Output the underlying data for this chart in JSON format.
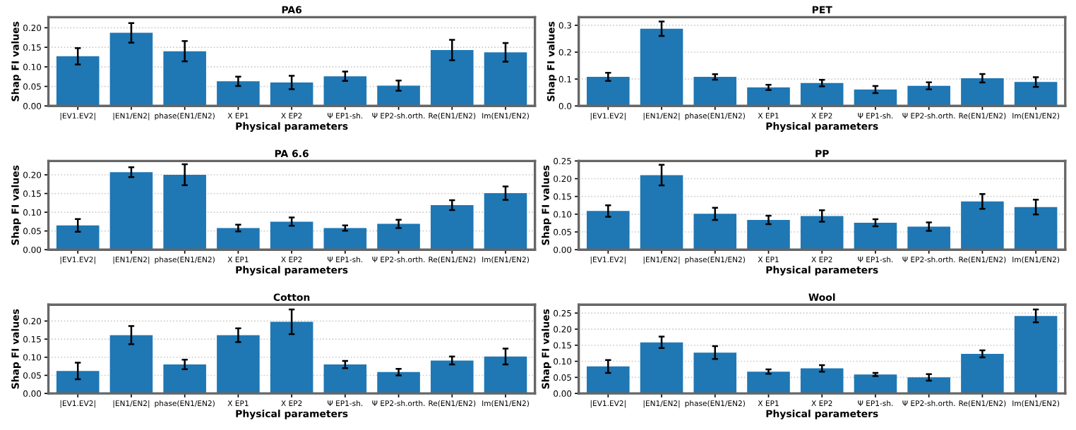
{
  "chart_data": [
    {
      "type": "bar",
      "title": "PA6",
      "xlabel": "Physical parameters",
      "ylabel": "Shap FI values",
      "categories": [
        "|EV1.EV2|",
        "|EN1/EN2|",
        "phase(EN1/EN2)",
        "X EP1",
        "X EP2",
        "Ψ EP1-sh.",
        "Ψ EP2-sh.orth.",
        "Re(EN1/EN2)",
        "Im(EN1/EN2)"
      ],
      "color": "#1f77b4",
      "values": [
        0.127,
        0.187,
        0.14,
        0.063,
        0.06,
        0.076,
        0.052,
        0.143,
        0.137
      ],
      "errors": [
        0.021,
        0.025,
        0.026,
        0.012,
        0.017,
        0.012,
        0.013,
        0.026,
        0.024
      ],
      "ylim": [
        0,
        0.227
      ],
      "yticks": [
        {
          "value": 0,
          "label": "0.00"
        },
        0.05,
        {
          "value": 0.1,
          "label": "0.10"
        },
        0.15,
        {
          "value": 0.2,
          "label": "0.20"
        }
      ],
      "grid": "y"
    },
    {
      "type": "bar",
      "title": "PET",
      "xlabel": "Physical parameters",
      "ylabel": "Shap FI values",
      "categories": [
        "|EV1.EV2|",
        "|EN1/EN2|",
        "phase(EN1/EN2)",
        "X EP1",
        "X EP2",
        "Ψ EP1-sh.",
        "Ψ EP2-sh.orth.",
        "Re(EN1/EN2)",
        "Im(EN1/EN2)"
      ],
      "color": "#1f77b4",
      "values": [
        0.108,
        0.287,
        0.108,
        0.069,
        0.085,
        0.061,
        0.075,
        0.103,
        0.089
      ],
      "errors": [
        0.015,
        0.027,
        0.01,
        0.01,
        0.012,
        0.013,
        0.013,
        0.016,
        0.018
      ],
      "ylim": [
        0,
        0.33
      ],
      "yticks": [
        {
          "value": 0,
          "label": "0.0"
        },
        0.1,
        0.2,
        0.3
      ],
      "grid": "y"
    },
    {
      "type": "bar",
      "title": "PA 6.6",
      "xlabel": "Physical parameters",
      "ylabel": "Shap FI values",
      "categories": [
        "|EV1.EV2|",
        "|EN1/EN2|",
        "phase(EN1/EN2)",
        "X EP1",
        "X EP2",
        "Ψ EP1-sh.",
        "Ψ EP2-sh.orth.",
        "Re(EN1/EN2)",
        "Im(EN1/EN2)"
      ],
      "color": "#1f77b4",
      "values": [
        0.065,
        0.207,
        0.2,
        0.058,
        0.075,
        0.058,
        0.069,
        0.119,
        0.151
      ],
      "errors": [
        0.017,
        0.013,
        0.028,
        0.009,
        0.011,
        0.007,
        0.011,
        0.013,
        0.018
      ],
      "ylim": [
        0,
        0.237
      ],
      "yticks": [
        {
          "value": 0,
          "label": "0.00"
        },
        0.05,
        {
          "value": 0.1,
          "label": "0.10"
        },
        0.15,
        {
          "value": 0.2,
          "label": "0.20"
        }
      ],
      "grid": "y"
    },
    {
      "type": "bar",
      "title": "PP",
      "xlabel": "Physical parameters",
      "ylabel": "Shap FI values",
      "categories": [
        "|EV1.EV2|",
        "|EN1/EN2|",
        "phase(EN1/EN2)",
        "X EP1",
        "X EP2",
        "Ψ EP1-sh.",
        "Ψ EP2-sh.orth.",
        "Re(EN1/EN2)",
        "Im(EN1/EN2)"
      ],
      "color": "#1f77b4",
      "values": [
        0.109,
        0.21,
        0.101,
        0.084,
        0.095,
        0.076,
        0.065,
        0.136,
        0.12
      ],
      "errors": [
        0.016,
        0.029,
        0.017,
        0.012,
        0.016,
        0.01,
        0.012,
        0.021,
        0.021
      ],
      "ylim": [
        0,
        0.25
      ],
      "yticks": [
        {
          "value": 0,
          "label": "0.00"
        },
        0.05,
        {
          "value": 0.1,
          "label": "0.10"
        },
        0.15,
        {
          "value": 0.2,
          "label": "0.20"
        },
        0.25
      ],
      "grid": "y"
    },
    {
      "type": "bar",
      "title": "Cotton",
      "xlabel": "Physical parameters",
      "ylabel": "Shap FI values",
      "categories": [
        "|EV1.EV2|",
        "|EN1/EN2|",
        "phase(EN1/EN2)",
        "X EP1",
        "X EP2",
        "Ψ EP1-sh.",
        "Ψ EP2-sh.orth.",
        "Re(EN1/EN2)",
        "Im(EN1/EN2)"
      ],
      "color": "#1f77b4",
      "values": [
        0.062,
        0.161,
        0.08,
        0.161,
        0.198,
        0.08,
        0.059,
        0.091,
        0.102
      ],
      "errors": [
        0.023,
        0.025,
        0.013,
        0.019,
        0.034,
        0.01,
        0.009,
        0.011,
        0.022
      ],
      "ylim": [
        0,
        0.245
      ],
      "yticks": [
        {
          "value": 0,
          "label": "0.00"
        },
        0.05,
        {
          "value": 0.1,
          "label": "0.10"
        },
        0.15,
        {
          "value": 0.2,
          "label": "0.20"
        }
      ],
      "grid": "y"
    },
    {
      "type": "bar",
      "title": "Wool",
      "xlabel": "Physical parameters",
      "ylabel": "Shap FI values",
      "categories": [
        "|EV1.EV2|",
        "|EN1/EN2|",
        "phase(EN1/EN2)",
        "X EP1",
        "X EP2",
        "Ψ EP1-sh.",
        "Ψ EP2-sh.orth.",
        "Re(EN1/EN2)",
        "Im(EN1/EN2)"
      ],
      "color": "#1f77b4",
      "values": [
        0.084,
        0.159,
        0.127,
        0.068,
        0.078,
        0.059,
        0.05,
        0.123,
        0.241
      ],
      "errors": [
        0.02,
        0.018,
        0.02,
        0.007,
        0.01,
        0.005,
        0.01,
        0.011,
        0.02
      ],
      "ylim": [
        0,
        0.276
      ],
      "yticks": [
        {
          "value": 0,
          "label": "0.00"
        },
        0.05,
        {
          "value": 0.1,
          "label": "0.10"
        },
        0.15,
        {
          "value": 0.2,
          "label": "0.20"
        },
        0.25
      ],
      "grid": "y"
    }
  ]
}
